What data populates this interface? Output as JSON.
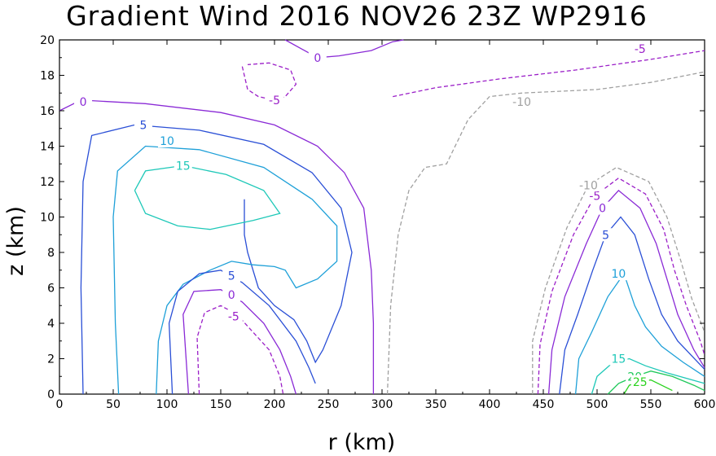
{
  "chart_data": {
    "type": "contour",
    "title": "Gradient Wind 2016 NOV26 23Z  WP2916",
    "xlabel": "r (km)",
    "ylabel": "z (km)",
    "xlim": [
      0,
      600
    ],
    "ylim": [
      0,
      20
    ],
    "x_ticks": [
      "0",
      "50",
      "100",
      "150",
      "200",
      "250",
      "300",
      "350",
      "400",
      "450",
      "500",
      "550",
      "600"
    ],
    "y_ticks": [
      "0",
      "2",
      "4",
      "6",
      "8",
      "10",
      "12",
      "14",
      "16",
      "18",
      "20"
    ],
    "levels": [
      {
        "value": -10,
        "label": "-10",
        "color": "#a0a0a0",
        "dashed": true
      },
      {
        "value": -5,
        "label": "-5",
        "color": "#9b1fc8",
        "dashed": true
      },
      {
        "value": 0,
        "label": "0",
        "color": "#8a2ad6",
        "dashed": false
      },
      {
        "value": 5,
        "label": "5",
        "color": "#2a4fd6",
        "dashed": false
      },
      {
        "value": 10,
        "label": "10",
        "color": "#1ea0d8",
        "dashed": false
      },
      {
        "value": 15,
        "label": "15",
        "color": "#1ec8b8",
        "dashed": false
      },
      {
        "value": 20,
        "label": "20",
        "color": "#1ec85a",
        "dashed": false
      },
      {
        "value": 25,
        "label": "25",
        "color": "#2ad21e",
        "dashed": false
      }
    ],
    "contours": [
      {
        "level": 0,
        "points": [
          [
            0,
            16.0
          ],
          [
            20,
            16.6
          ],
          [
            80,
            16.4
          ],
          [
            150,
            15.9
          ],
          [
            200,
            15.2
          ],
          [
            240,
            14.0
          ],
          [
            265,
            12.5
          ],
          [
            283,
            10.5
          ],
          [
            290,
            7.0
          ],
          [
            292,
            4.0
          ],
          [
            292,
            0
          ]
        ],
        "label_at": [
          22,
          16.5
        ]
      },
      {
        "level": 5,
        "points": [
          [
            22,
            0
          ],
          [
            20,
            6
          ],
          [
            22,
            12
          ],
          [
            30,
            14.6
          ],
          [
            70,
            15.2
          ],
          [
            130,
            14.9
          ],
          [
            190,
            14.1
          ],
          [
            235,
            12.5
          ],
          [
            262,
            10.5
          ],
          [
            272,
            8
          ],
          [
            262,
            5
          ],
          [
            245,
            2.5
          ],
          [
            238,
            1.8
          ],
          [
            230,
            3
          ],
          [
            218,
            4.2
          ],
          [
            200,
            5
          ],
          [
            185,
            6
          ],
          [
            175,
            8
          ],
          [
            172,
            9
          ],
          [
            172,
            11
          ]
        ],
        "label_at": [
          78,
          15.2
        ]
      },
      {
        "level": 10,
        "points": [
          [
            55,
            0
          ],
          [
            52,
            4
          ],
          [
            50,
            10
          ],
          [
            54,
            12.6
          ],
          [
            80,
            14.0
          ],
          [
            130,
            13.8
          ],
          [
            190,
            12.8
          ],
          [
            235,
            11.0
          ],
          [
            258,
            9.5
          ],
          [
            258,
            7.5
          ],
          [
            240,
            6.5
          ],
          [
            220,
            6.0
          ],
          [
            210,
            7.0
          ],
          [
            200,
            7.2
          ],
          [
            180,
            7.3
          ],
          [
            160,
            7.5
          ],
          [
            140,
            7.0
          ],
          [
            115,
            6.2
          ],
          [
            100,
            5.0
          ],
          [
            92,
            3.0
          ],
          [
            90,
            0
          ]
        ],
        "label_at": [
          100,
          14.3
        ]
      },
      {
        "level": 15,
        "points": [
          [
            70,
            11.5
          ],
          [
            80,
            12.6
          ],
          [
            115,
            12.9
          ],
          [
            155,
            12.4
          ],
          [
            190,
            11.5
          ],
          [
            205,
            10.2
          ],
          [
            180,
            9.8
          ],
          [
            140,
            9.3
          ],
          [
            110,
            9.5
          ],
          [
            80,
            10.2
          ],
          [
            70,
            11.5
          ]
        ],
        "label_at": [
          115,
          12.9
        ]
      },
      {
        "level": 0,
        "points": [
          [
            120,
            0
          ],
          [
            115,
            4.5
          ],
          [
            125,
            5.8
          ],
          [
            150,
            5.9
          ],
          [
            170,
            5.2
          ],
          [
            190,
            4.0
          ],
          [
            205,
            2.5
          ],
          [
            215,
            1.0
          ],
          [
            220,
            0
          ]
        ],
        "label_at": [
          160,
          5.6
        ]
      },
      {
        "level": 5,
        "points": [
          [
            105,
            0
          ],
          [
            102,
            4.0
          ],
          [
            110,
            5.8
          ],
          [
            130,
            6.8
          ],
          [
            150,
            7.0
          ],
          [
            170,
            6.3
          ],
          [
            195,
            5.0
          ],
          [
            220,
            3.0
          ],
          [
            232,
            1.5
          ],
          [
            238,
            0.6
          ]
        ],
        "label_at": [
          160,
          6.7
        ]
      },
      {
        "level": -5,
        "points": [
          [
            130,
            0
          ],
          [
            128,
            3.2
          ],
          [
            135,
            4.6
          ],
          [
            150,
            5.0
          ],
          [
            165,
            4.5
          ],
          [
            180,
            3.5
          ],
          [
            195,
            2.5
          ],
          [
            205,
            1.0
          ],
          [
            208,
            0
          ]
        ],
        "label_at": [
          162,
          4.4
        ]
      },
      {
        "level": -5,
        "points": [
          [
            310,
            16.8
          ],
          [
            350,
            17.3
          ],
          [
            410,
            17.8
          ],
          [
            480,
            18.3
          ],
          [
            550,
            18.9
          ],
          [
            600,
            19.4
          ]
        ],
        "label_at": [
          540,
          19.5
        ]
      },
      {
        "level": -10,
        "points": [
          [
            305,
            0
          ],
          [
            308,
            5
          ],
          [
            315,
            9
          ],
          [
            325,
            11.5
          ],
          [
            340,
            12.8
          ],
          [
            360,
            13.0
          ],
          [
            380,
            15.5
          ],
          [
            400,
            16.8
          ],
          [
            430,
            17.0
          ],
          [
            500,
            17.2
          ],
          [
            550,
            17.6
          ],
          [
            600,
            18.2
          ]
        ],
        "label_at": [
          430,
          16.5
        ]
      },
      {
        "level": 0,
        "points": [
          [
            210,
            20
          ],
          [
            225,
            19.5
          ],
          [
            240,
            19.0
          ],
          [
            260,
            19.1
          ],
          [
            290,
            19.4
          ],
          [
            310,
            19.9
          ],
          [
            320,
            20
          ]
        ],
        "label_at": [
          240,
          19.0
        ]
      },
      {
        "level": -5,
        "points": [
          [
            170,
            18.5
          ],
          [
            175,
            17.2
          ],
          [
            185,
            16.8
          ],
          [
            200,
            16.6
          ],
          [
            210,
            16.8
          ],
          [
            220,
            17.5
          ],
          [
            215,
            18.3
          ],
          [
            195,
            18.7
          ],
          [
            175,
            18.6
          ]
        ],
        "label_at": [
          200,
          16.6
        ]
      },
      {
        "level": 0,
        "points": [
          [
            455,
            0
          ],
          [
            458,
            2.5
          ],
          [
            470,
            5.5
          ],
          [
            490,
            8.5
          ],
          [
            505,
            10.5
          ],
          [
            520,
            11.5
          ],
          [
            540,
            10.5
          ],
          [
            555,
            8.5
          ],
          [
            565,
            6.5
          ],
          [
            575,
            4.5
          ],
          [
            590,
            2.5
          ],
          [
            600,
            1.5
          ]
        ],
        "label_at": [
          505,
          10.5
        ]
      },
      {
        "level": -5,
        "points": [
          [
            445,
            0
          ],
          [
            447,
            2.8
          ],
          [
            458,
            5.8
          ],
          [
            478,
            9.0
          ],
          [
            498,
            11.2
          ],
          [
            520,
            12.2
          ],
          [
            545,
            11.3
          ],
          [
            562,
            9.3
          ],
          [
            572,
            7.0
          ],
          [
            583,
            5.0
          ],
          [
            596,
            3.0
          ],
          [
            600,
            2.2
          ]
        ],
        "label_at": [
          498,
          11.2
        ]
      },
      {
        "level": -10,
        "points": [
          [
            440,
            0
          ],
          [
            440,
            3.0
          ],
          [
            452,
            6.0
          ],
          [
            472,
            9.4
          ],
          [
            492,
            11.8
          ],
          [
            518,
            12.8
          ],
          [
            548,
            12.0
          ],
          [
            565,
            10.0
          ],
          [
            578,
            7.5
          ],
          [
            588,
            5.4
          ],
          [
            600,
            3.5
          ]
        ],
        "label_at": [
          492,
          11.8
        ]
      },
      {
        "level": 5,
        "points": [
          [
            465,
            0
          ],
          [
            470,
            2.5
          ],
          [
            482,
            4.5
          ],
          [
            496,
            7.0
          ],
          [
            508,
            9.0
          ],
          [
            522,
            10.0
          ],
          [
            535,
            9.0
          ],
          [
            548,
            6.5
          ],
          [
            560,
            4.5
          ],
          [
            575,
            3.0
          ],
          [
            600,
            1.4
          ]
        ],
        "label_at": [
          508,
          9.0
        ]
      },
      {
        "level": 10,
        "points": [
          [
            480,
            0
          ],
          [
            483,
            2.0
          ],
          [
            495,
            3.5
          ],
          [
            510,
            5.5
          ],
          [
            525,
            6.8
          ],
          [
            535,
            5.0
          ],
          [
            545,
            3.8
          ],
          [
            560,
            2.7
          ],
          [
            580,
            1.8
          ],
          [
            600,
            1.0
          ]
        ],
        "label_at": [
          520,
          6.8
        ]
      },
      {
        "level": 15,
        "points": [
          [
            495,
            0
          ],
          [
            500,
            1.0
          ],
          [
            515,
            1.8
          ],
          [
            530,
            2.0
          ],
          [
            545,
            1.6
          ],
          [
            565,
            1.2
          ],
          [
            600,
            0.6
          ]
        ],
        "label_at": [
          520,
          2.0
        ]
      },
      {
        "level": 20,
        "points": [
          [
            510,
            0
          ],
          [
            520,
            0.6
          ],
          [
            535,
            1.0
          ],
          [
            550,
            1.3
          ],
          [
            570,
            1.0
          ],
          [
            590,
            0.5
          ],
          [
            600,
            0.2
          ]
        ],
        "label_at": [
          535,
          1.0
        ]
      },
      {
        "level": 25,
        "points": [
          [
            525,
            0
          ],
          [
            530,
            0.5
          ],
          [
            540,
            0.7
          ],
          [
            550,
            0.8
          ],
          [
            560,
            0.5
          ],
          [
            570,
            0.2
          ]
        ],
        "label_at": [
          540,
          0.7
        ]
      }
    ]
  }
}
